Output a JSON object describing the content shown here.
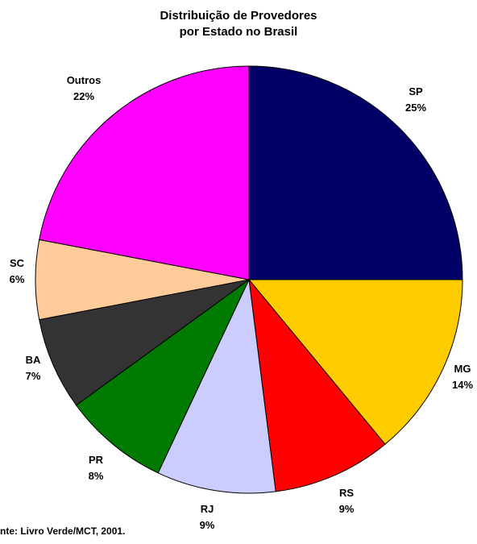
{
  "chart_data": {
    "type": "pie",
    "title_lines": [
      "Distribuição de Provedores",
      "por Estado no Brasil"
    ],
    "categories": [
      "SP",
      "MG",
      "RS",
      "RJ",
      "PR",
      "BA",
      "SC",
      "Outros"
    ],
    "values": [
      25,
      14,
      9,
      9,
      8,
      7,
      6,
      22
    ],
    "value_labels": [
      "25%",
      "14%",
      "9%",
      "9%",
      "8%",
      "7%",
      "6%",
      "22%"
    ],
    "colors": [
      "#000066",
      "#FFCC00",
      "#FF0000",
      "#CCCCFF",
      "#007A00",
      "#333333",
      "#FFCC99",
      "#FF00FF"
    ],
    "start_angle_deg": 0,
    "direction": "clockwise",
    "legend": "none",
    "source_text": "nte: Livro Verde/MCT, 2001."
  }
}
